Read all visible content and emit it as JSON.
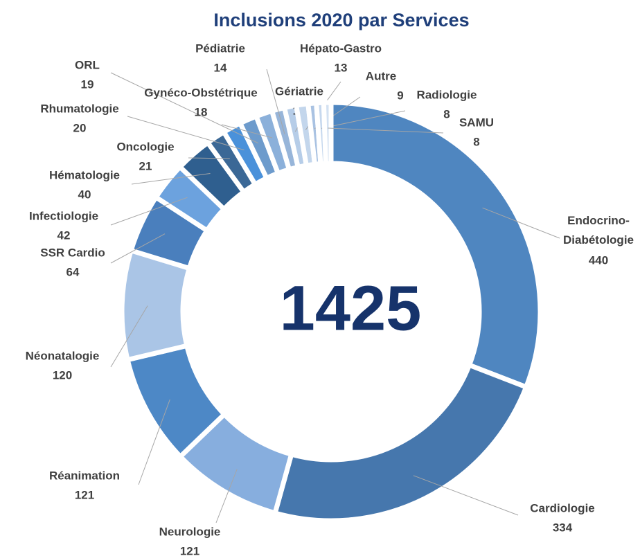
{
  "chart_data": {
    "type": "donut",
    "title": "Inclusions 2020 par Services",
    "total": 1425,
    "categories": [
      "Endocrino-Diabétologie",
      "Cardiologie",
      "Neurologie",
      "Réanimation",
      "Néonatalogie",
      "SSR Cardio",
      "Infectiologie",
      "Hématologie",
      "Oncologie",
      "Rhumatologie",
      "ORL",
      "Gynéco-Obstétrique",
      "Pédiatrie",
      "Gériatrie",
      "Hépato-Gastro",
      "Autre",
      "Radiologie",
      "SAMU"
    ],
    "values": [
      440,
      334,
      121,
      121,
      120,
      64,
      42,
      40,
      21,
      20,
      19,
      18,
      14,
      13,
      13,
      9,
      8,
      8
    ],
    "colors": [
      "#4f86c0",
      "#4677ad",
      "#87aede",
      "#4d88c6",
      "#aac5e6",
      "#4a7fbd",
      "#6ca2de",
      "#2f5f8f",
      "#3b6896",
      "#4a91da",
      "#6d9bcc",
      "#8bb0da",
      "#97b5d9",
      "#b6cde8",
      "#c3d6ec",
      "#a9c2e2",
      "#c6d8ee",
      "#d3e1f2"
    ]
  }
}
